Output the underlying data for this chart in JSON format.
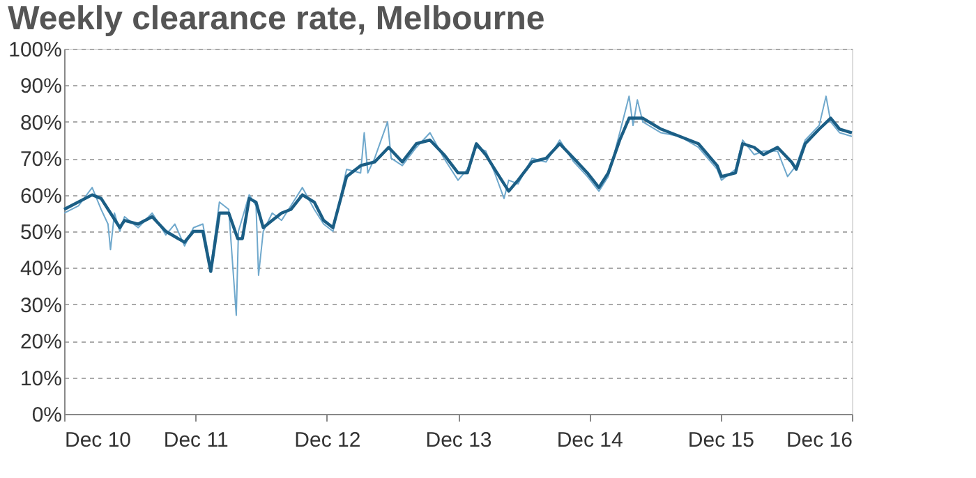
{
  "chart_data": {
    "type": "line",
    "title": "Weekly clearance rate, Melbourne",
    "xlim": [
      "2010-12-01",
      "2016-12-01"
    ],
    "xticks": [
      {
        "value": "2010-12-01",
        "label": "Dec 10"
      },
      {
        "value": "2011-12-01",
        "label": "Dec 11"
      },
      {
        "value": "2012-12-01",
        "label": "Dec 12"
      },
      {
        "value": "2013-12-01",
        "label": "Dec 13"
      },
      {
        "value": "2014-12-01",
        "label": "Dec 14"
      },
      {
        "value": "2015-12-01",
        "label": "Dec 15"
      },
      {
        "value": "2016-12-01",
        "label": "Dec 16"
      }
    ],
    "ylim": [
      0,
      100
    ],
    "yticks": [
      {
        "value": 0,
        "label": "0%"
      },
      {
        "value": 10,
        "label": "10%"
      },
      {
        "value": 20,
        "label": "20%"
      },
      {
        "value": 30,
        "label": "30%"
      },
      {
        "value": 40,
        "label": "40%"
      },
      {
        "value": 50,
        "label": "50%"
      },
      {
        "value": 60,
        "label": "60%"
      },
      {
        "value": 70,
        "label": "70%"
      },
      {
        "value": 80,
        "label": "80%"
      },
      {
        "value": 90,
        "label": "90%"
      },
      {
        "value": 100,
        "label": "100%"
      }
    ],
    "grid": "y",
    "line_style": "solid",
    "marker": "none",
    "series": [
      {
        "color": "#6fa8cc",
        "x": [
          "2010-12-01",
          "2011-01-10",
          "2011-02-17",
          "2011-03-14",
          "2011-04-02",
          "2011-04-09",
          "2011-04-20",
          "2011-05-05",
          "2011-05-18",
          "2011-06-25",
          "2011-08-03",
          "2011-09-10",
          "2011-10-05",
          "2011-11-01",
          "2011-11-26",
          "2011-12-22",
          "2012-01-13",
          "2012-02-06",
          "2012-03-03",
          "2012-03-24",
          "2012-03-30",
          "2012-04-29",
          "2012-05-18",
          "2012-05-25",
          "2012-06-07",
          "2012-07-02",
          "2012-07-28",
          "2012-08-23",
          "2012-09-24",
          "2012-10-27",
          "2012-11-22",
          "2012-12-18",
          "2013-01-25",
          "2013-03-05",
          "2013-03-15",
          "2013-03-25",
          "2013-04-13",
          "2013-05-19",
          "2013-05-29",
          "2013-06-29",
          "2013-08-07",
          "2013-09-14",
          "2013-10-23",
          "2013-12-01",
          "2013-12-27",
          "2014-01-21",
          "2014-02-16",
          "2014-03-13",
          "2014-04-08",
          "2014-04-21",
          "2014-05-17",
          "2014-06-25",
          "2014-08-03",
          "2014-09-10",
          "2014-10-19",
          "2014-11-26",
          "2014-12-28",
          "2015-01-23",
          "2015-02-24",
          "2015-03-22",
          "2015-04-02",
          "2015-04-14",
          "2015-04-29",
          "2015-06-19",
          "2015-08-10",
          "2015-10-01",
          "2015-11-22",
          "2015-12-04",
          "2016-01-12",
          "2016-02-01",
          "2016-03-04",
          "2016-03-30",
          "2016-05-08",
          "2016-06-05",
          "2016-06-29",
          "2016-07-24",
          "2016-09-01",
          "2016-09-20",
          "2016-10-03",
          "2016-10-28",
          "2016-12-01"
        ],
        "values": [
          55,
          57,
          62,
          56,
          52,
          45,
          55,
          50,
          54,
          51,
          55,
          49,
          52,
          46,
          51,
          52,
          40,
          58,
          56,
          27,
          50,
          60,
          57,
          38,
          50,
          55,
          53,
          57,
          62,
          56,
          52,
          50,
          67,
          66,
          77,
          66,
          70,
          80,
          70,
          68,
          73,
          77,
          70,
          64,
          67,
          73,
          72,
          66,
          59,
          64,
          63,
          70,
          69,
          75,
          69,
          65,
          61,
          65,
          77,
          87,
          79,
          86,
          80,
          77,
          76,
          73,
          67,
          64,
          67,
          75,
          71,
          72,
          72,
          65,
          68,
          75,
          79,
          87,
          80,
          77,
          76
        ]
      },
      {
        "color": "#1b5e85",
        "x": [
          "2010-12-01",
          "2011-02-17",
          "2011-03-14",
          "2011-04-09",
          "2011-05-05",
          "2011-05-18",
          "2011-06-25",
          "2011-08-03",
          "2011-09-10",
          "2011-11-01",
          "2011-11-26",
          "2011-12-22",
          "2012-01-13",
          "2012-02-06",
          "2012-03-03",
          "2012-03-28",
          "2012-04-10",
          "2012-04-29",
          "2012-05-18",
          "2012-06-07",
          "2012-07-02",
          "2012-07-28",
          "2012-08-23",
          "2012-09-24",
          "2012-10-27",
          "2012-11-22",
          "2012-12-18",
          "2013-01-25",
          "2013-03-05",
          "2013-04-13",
          "2013-05-22",
          "2013-06-29",
          "2013-08-07",
          "2013-09-14",
          "2013-10-23",
          "2013-12-01",
          "2013-12-27",
          "2014-01-21",
          "2014-02-16",
          "2014-03-13",
          "2014-04-21",
          "2014-05-17",
          "2014-06-25",
          "2014-08-03",
          "2014-09-10",
          "2014-10-19",
          "2014-11-26",
          "2014-12-28",
          "2015-01-23",
          "2015-02-24",
          "2015-03-22",
          "2015-04-29",
          "2015-06-19",
          "2015-08-10",
          "2015-10-01",
          "2015-11-22",
          "2015-12-04",
          "2016-01-12",
          "2016-02-01",
          "2016-03-04",
          "2016-03-30",
          "2016-05-08",
          "2016-06-16",
          "2016-06-29",
          "2016-07-24",
          "2016-09-01",
          "2016-10-03",
          "2016-10-28",
          "2016-12-01"
        ],
        "values": [
          56,
          60,
          59,
          55,
          51,
          53,
          52,
          54,
          50,
          47,
          50,
          50,
          39,
          55,
          55,
          48,
          48,
          59,
          58,
          51,
          53,
          55,
          56,
          60,
          58,
          53,
          51,
          65,
          68,
          69,
          73,
          69,
          74,
          75,
          71,
          66,
          66,
          74,
          71,
          67,
          61,
          64,
          69,
          70,
          74,
          70,
          66,
          62,
          66,
          75,
          81,
          81,
          78,
          76,
          74,
          68,
          65,
          66,
          74,
          73,
          71,
          73,
          69,
          67,
          74,
          78,
          81,
          78,
          77
        ]
      }
    ]
  }
}
